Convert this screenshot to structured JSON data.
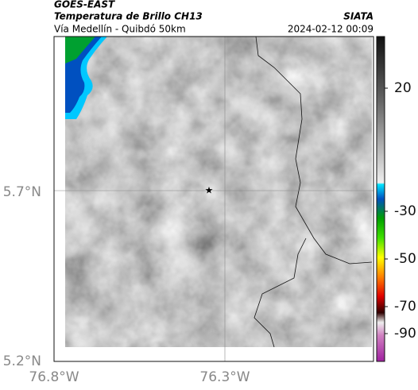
{
  "header": {
    "source": "GOES-EAST",
    "title": "Temperatura de Brillo CH13",
    "subtitle": "Vía Medellín - Quibdó 50km",
    "org": "SIATA",
    "datetime": "2024-02-12 00:09"
  },
  "axes": {
    "lat_labels": [
      "5.7°N",
      "5.2°N"
    ],
    "lon_labels": [
      "76.8°W",
      "76.3°W"
    ]
  },
  "colorbar": {
    "tick_labels": [
      "20",
      "-30",
      "-50",
      "-70",
      "-90"
    ]
  }
}
